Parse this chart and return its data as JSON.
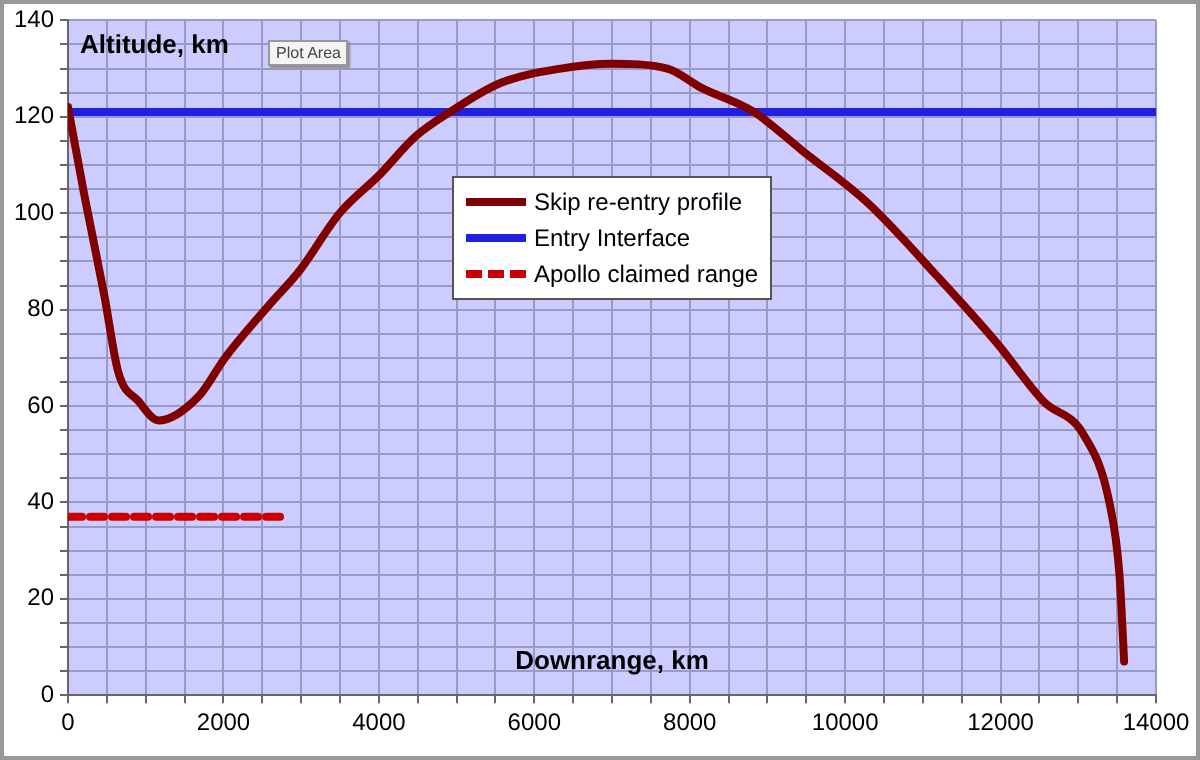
{
  "chart_data": {
    "type": "line",
    "xlabel": "Downrange, km",
    "ylabel": "Altitude, km",
    "xlim": [
      0,
      14000
    ],
    "ylim": [
      0,
      140
    ],
    "xticks": [
      0,
      {
        "value": 500,
        "label": null
      },
      {
        "value": 1000,
        "label": null
      },
      {
        "value": 1500,
        "label": null
      },
      2000,
      {
        "value": 2500,
        "label": null
      },
      {
        "value": 3000,
        "label": null
      },
      {
        "value": 3500,
        "label": null
      },
      4000,
      {
        "value": 4500,
        "label": null
      },
      {
        "value": 5000,
        "label": null
      },
      {
        "value": 5500,
        "label": null
      },
      6000,
      {
        "value": 6500,
        "label": null
      },
      {
        "value": 7000,
        "label": null
      },
      {
        "value": 7500,
        "label": null
      },
      8000,
      {
        "value": 8500,
        "label": null
      },
      {
        "value": 9000,
        "label": null
      },
      {
        "value": 9500,
        "label": null
      },
      10000,
      {
        "value": 10500,
        "label": null
      },
      {
        "value": 11000,
        "label": null
      },
      {
        "value": 11500,
        "label": null
      },
      12000,
      {
        "value": 12500,
        "label": null
      },
      {
        "value": 13000,
        "label": null
      },
      {
        "value": 13500,
        "label": null
      },
      14000
    ],
    "yticks": [
      0,
      {
        "value": 5,
        "label": null
      },
      {
        "value": 10,
        "label": null
      },
      {
        "value": 15,
        "label": null
      },
      20,
      {
        "value": 25,
        "label": null
      },
      {
        "value": 30,
        "label": null
      },
      {
        "value": 35,
        "label": null
      },
      40,
      {
        "value": 45,
        "label": null
      },
      {
        "value": 50,
        "label": null
      },
      {
        "value": 55,
        "label": null
      },
      60,
      {
        "value": 65,
        "label": null
      },
      {
        "value": 70,
        "label": null
      },
      {
        "value": 75,
        "label": null
      },
      80,
      {
        "value": 85,
        "label": null
      },
      {
        "value": 90,
        "label": null
      },
      {
        "value": 95,
        "label": null
      },
      100,
      {
        "value": 105,
        "label": null
      },
      {
        "value": 110,
        "label": null
      },
      {
        "value": 115,
        "label": null
      },
      120,
      {
        "value": 125,
        "label": null
      },
      {
        "value": 130,
        "label": null
      },
      {
        "value": 135,
        "label": null
      },
      140
    ],
    "grid": true,
    "legend": "center",
    "marker": "none",
    "series": [
      {
        "name": "Skip re-entry profile",
        "color": "#800000",
        "line_style": "solid",
        "x": [
          0,
          207,
          466,
          647,
          906,
          1165,
          1680,
          2020,
          2590,
          2976,
          3494,
          4011,
          4477,
          4917,
          5564,
          6340,
          6988,
          7712,
          8152,
          8825,
          9446,
          10300,
          11180,
          11956,
          12550,
          13070,
          13400,
          13530,
          13590
        ],
        "values": [
          122,
          104,
          83,
          67,
          61,
          57,
          62,
          70,
          81,
          88,
          100,
          108,
          116,
          121,
          127,
          130,
          131,
          130,
          126,
          121,
          113,
          102,
          87,
          73,
          61,
          54,
          40,
          25,
          7
        ]
      },
      {
        "name": "Entry Interface",
        "color": "#2020e0",
        "line_style": "solid",
        "x": [
          0,
          14000
        ],
        "values": [
          121,
          121
        ]
      },
      {
        "name": "Apollo claimed range",
        "color": "#cc0000",
        "line_style": "dashed",
        "x": [
          0,
          2800
        ],
        "values": [
          37,
          37
        ]
      }
    ],
    "annotations": [
      "Plot Area"
    ]
  }
}
